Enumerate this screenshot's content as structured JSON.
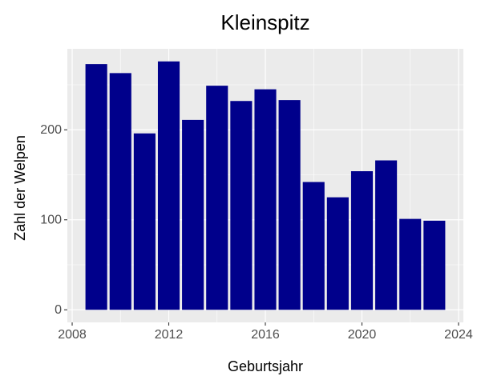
{
  "chart_data": {
    "type": "bar",
    "title": "Kleinspitz",
    "xlabel": "Geburtsjahr",
    "ylabel": "Zahl der Welpen",
    "x": [
      2009,
      2010,
      2011,
      2012,
      2013,
      2014,
      2015,
      2016,
      2017,
      2018,
      2019,
      2020,
      2021,
      2022,
      2023
    ],
    "values": [
      273,
      263,
      196,
      276,
      211,
      249,
      232,
      245,
      233,
      142,
      125,
      154,
      166,
      101,
      99
    ],
    "xlim": [
      2007.8,
      2024.2
    ],
    "ylim": [
      -14,
      290
    ],
    "xticks": [
      2008,
      2012,
      2016,
      2020,
      2024
    ],
    "xtick_labels": [
      "2008",
      "2012",
      "2016",
      "2020",
      "2024"
    ],
    "yticks": [
      0,
      100,
      200
    ],
    "ytick_labels": [
      "0",
      "100",
      "200"
    ],
    "grid": true,
    "colors": {
      "bar": "#00008B",
      "panel_background": "#EBEBEB",
      "grid": "#FFFFFF"
    }
  }
}
